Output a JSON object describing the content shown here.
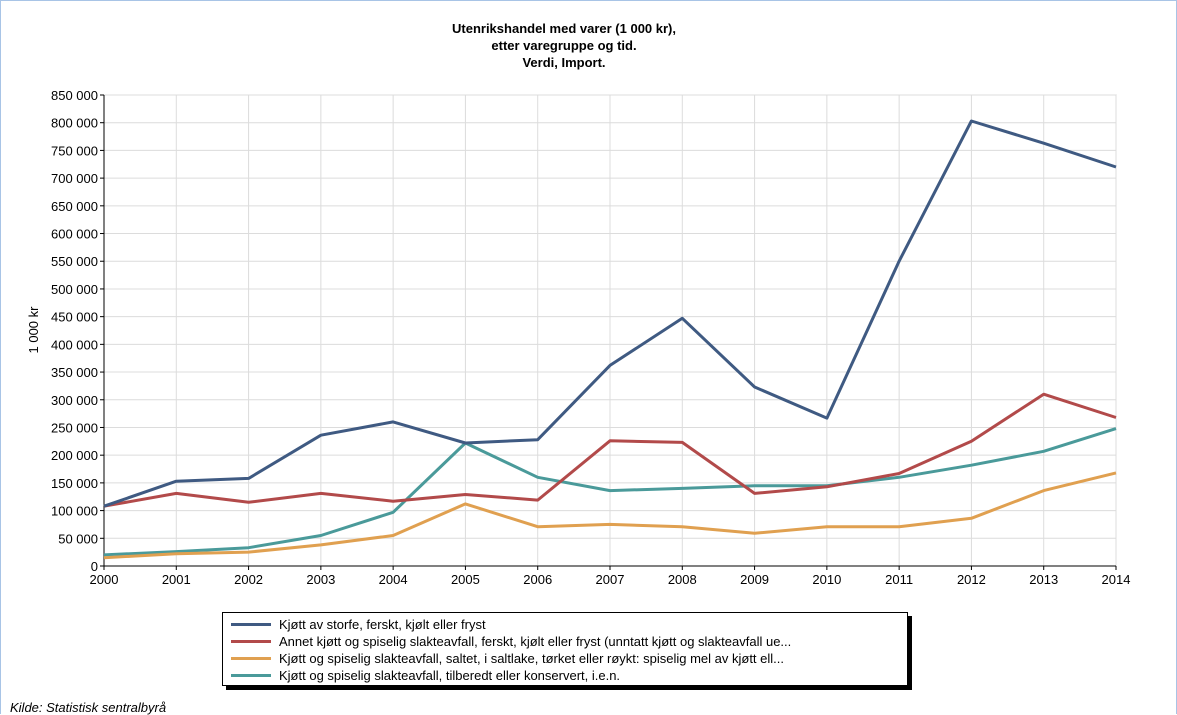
{
  "chart_data": {
    "type": "line",
    "title_lines": [
      "Utenrikshandel med varer (1 000 kr),",
      "etter varegruppe og tid.",
      "Verdi, Import."
    ],
    "ylabel": "1 000 kr",
    "xlabel": "",
    "x": [
      "2000",
      "2001",
      "2002",
      "2003",
      "2004",
      "2005",
      "2006",
      "2007",
      "2008",
      "2009",
      "2010",
      "2011",
      "2012",
      "2013",
      "2014"
    ],
    "ylim": [
      0,
      850000
    ],
    "yticks": [
      0,
      50000,
      100000,
      150000,
      200000,
      250000,
      300000,
      350000,
      400000,
      450000,
      500000,
      550000,
      600000,
      650000,
      700000,
      750000,
      800000,
      850000
    ],
    "ytick_labels": [
      "0",
      "50 000",
      "100 000",
      "150 000",
      "200 000",
      "250 000",
      "300 000",
      "350 000",
      "400 000",
      "450 000",
      "500 000",
      "550 000",
      "600 000",
      "650 000",
      "700 000",
      "750 000",
      "800 000",
      "850 000"
    ],
    "grid": true,
    "legend_position": "bottom",
    "series": [
      {
        "name": "Kjøtt av storfe, ferskt, kjølt eller fryst",
        "color": "#3f5a82",
        "values": [
          108000,
          153000,
          158000,
          236000,
          260000,
          222000,
          228000,
          362000,
          447000,
          323000,
          267000,
          550000,
          803000,
          763000,
          720000
        ]
      },
      {
        "name": "Annet kjøtt og spiselig slakteavfall, ferskt, kjølt eller fryst (unntatt kjøtt og slakteavfall ue...",
        "color": "#b24a4a",
        "values": [
          108000,
          131000,
          115000,
          131000,
          117000,
          129000,
          119000,
          226000,
          223000,
          131000,
          143000,
          167000,
          225000,
          310000,
          268000
        ]
      },
      {
        "name": "Kjøtt og spiselig slakteavfall, saltet, i saltlake, tørket eller røykt: spiselig mel av kjøtt ell...",
        "color": "#e0a050",
        "values": [
          15000,
          22000,
          25000,
          38000,
          55000,
          112000,
          71000,
          75000,
          71000,
          59000,
          71000,
          71000,
          86000,
          136000,
          168000
        ]
      },
      {
        "name": "Kjøtt og spiselig slakteavfall, tilberedt eller konservert, i.e.n.",
        "color": "#4a9a9a",
        "values": [
          20000,
          26000,
          33000,
          55000,
          97000,
          222000,
          160000,
          136000,
          140000,
          145000,
          145000,
          160000,
          182000,
          207000,
          248000
        ]
      }
    ]
  },
  "source": "Kilde: Statistisk sentralbyrå"
}
